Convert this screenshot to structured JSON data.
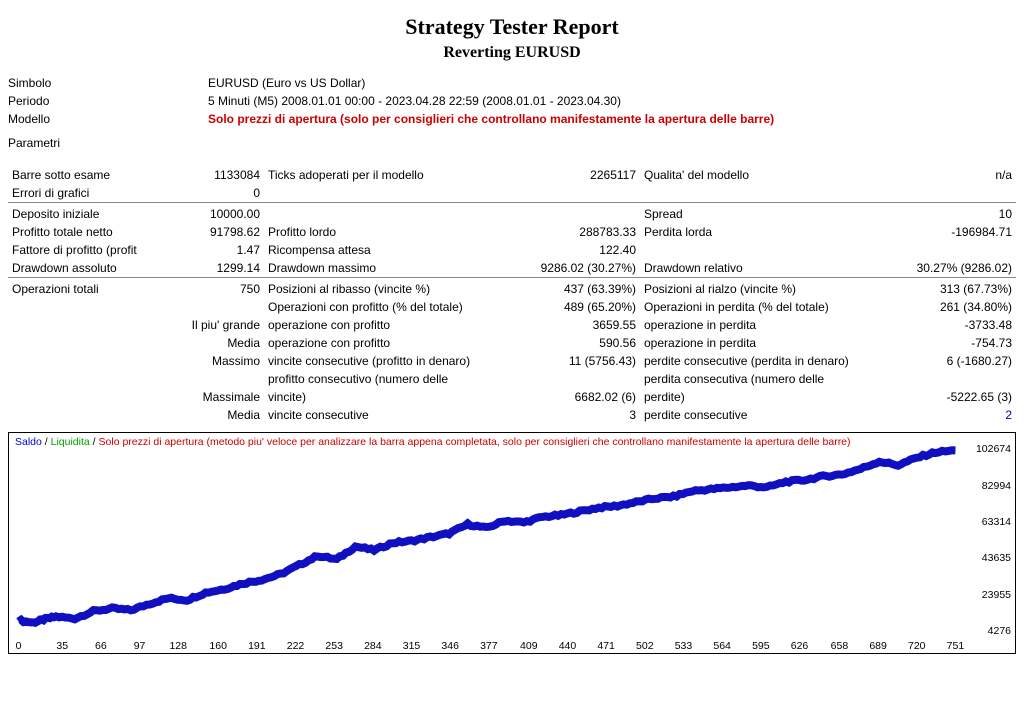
{
  "title": "Strategy Tester Report",
  "subtitle": "Reverting EURUSD",
  "meta": {
    "simbolo_l": "Simbolo",
    "simbolo_v": "EURUSD (Euro vs US Dollar)",
    "periodo_l": "Periodo",
    "periodo_v": "5 Minuti (M5) 2008.01.01 00:00 - 2023.04.28 22:59 (2008.01.01 - 2023.04.30)",
    "modello_l": "Modello",
    "modello_v": "Solo prezzi di apertura (solo per consiglieri che controllano manifestamente la apertura delle barre)",
    "parametri_l": "Parametri"
  },
  "row1": {
    "l1": "Barre sotto esame",
    "v1": "1133084",
    "l2": "Ticks adoperati per il modello",
    "v2": "2265117",
    "l3": "Qualita' del modello",
    "v3": "n/a"
  },
  "row2": {
    "l1": "Errori di grafici",
    "v1": "0",
    "l2": "",
    "v2": "",
    "l3": "",
    "v3": ""
  },
  "row3": {
    "l1": "Deposito iniziale",
    "v1": "10000.00",
    "l2": "",
    "v2": "",
    "l3": "Spread",
    "v3": "10"
  },
  "row4": {
    "l1": "Profitto totale netto",
    "v1": "91798.62",
    "l2": "Profitto lordo",
    "v2": "288783.33",
    "l3": "Perdita lorda",
    "v3": "-196984.71"
  },
  "row5": {
    "l1": "Fattore di profitto (profit",
    "v1": "1.47",
    "l2": "Ricompensa attesa",
    "v2": "122.40",
    "l3": "",
    "v3": ""
  },
  "row6": {
    "l1": "Drawdown assoluto",
    "v1": "1299.14",
    "l2": "Drawdown massimo",
    "v2": "9286.02 (30.27%)",
    "l3": "Drawdown relativo",
    "v3": "30.27% (9286.02)"
  },
  "row7": {
    "l1": "Operazioni totali",
    "v1": "750",
    "l2": "Posizioni al ribasso (vincite %)",
    "v2": "437 (63.39%)",
    "l3": "Posizioni al rialzo (vincite %)",
    "v3": "313 (67.73%)"
  },
  "row8": {
    "l1": "",
    "v1": "",
    "l2": "Operazioni con profitto (% del totale)",
    "v2": "489 (65.20%)",
    "l3": "Operazioni in perdita (% del totale)",
    "v3": "261 (34.80%)"
  },
  "row9": {
    "l1": "",
    "v1": "Il piu' grande",
    "l2": "operazione con profitto",
    "v2": "3659.55",
    "l3": "operazione in perdita",
    "v3": "-3733.48"
  },
  "row10": {
    "l1": "",
    "v1": "Media",
    "l2": "operazione con profitto",
    "v2": "590.56",
    "l3": "operazione in perdita",
    "v3": "-754.73"
  },
  "row11": {
    "l1": "",
    "v1": "Massimo",
    "l2": "vincite consecutive (profitto in denaro)",
    "v2": "11 (5756.43)",
    "l3": "perdite consecutive (perdita in denaro)",
    "v3": "6 (-1680.27)"
  },
  "row12": {
    "l1": "",
    "v1": "",
    "l2": "profitto consecutivo (numero delle",
    "v2": "",
    "l3": "perdita consecutiva (numero delle",
    "v3": ""
  },
  "row13": {
    "l1": "",
    "v1": "Massimale",
    "l2": "vincite)",
    "v2": "6682.02 (6)",
    "l3": "perdite)",
    "v3": "-5222.65 (3)"
  },
  "row14": {
    "l1": "",
    "v1": "Media",
    "l2": "vincite consecutive",
    "v2": "3",
    "l3": "perdite consecutive",
    "v3": "2"
  },
  "chart": {
    "legend": {
      "saldo": "Saldo",
      "liq": "Liquidita",
      "mode": "Solo prezzi di apertura (metodo piu' veloce per analizzare la barra appena completata, solo per consiglieri che controllano manifestamente la apertura delle barre)"
    },
    "line_color": "#1010c0",
    "y_ticks": [
      4276,
      23955,
      43635,
      63314,
      82994,
      102674
    ],
    "x_ticks": [
      0,
      35,
      66,
      97,
      128,
      160,
      191,
      222,
      253,
      284,
      315,
      346,
      377,
      409,
      440,
      471,
      502,
      533,
      564,
      595,
      626,
      658,
      689,
      720,
      751
    ],
    "x_min": 0,
    "x_max": 751,
    "y_min": 4276,
    "y_max": 102674,
    "points": [
      [
        0,
        10000
      ],
      [
        12,
        8800
      ],
      [
        20,
        10500
      ],
      [
        30,
        12000
      ],
      [
        45,
        11000
      ],
      [
        60,
        15000
      ],
      [
        75,
        16500
      ],
      [
        90,
        15500
      ],
      [
        105,
        19000
      ],
      [
        120,
        22000
      ],
      [
        135,
        21000
      ],
      [
        150,
        25000
      ],
      [
        165,
        27000
      ],
      [
        180,
        30000
      ],
      [
        195,
        32000
      ],
      [
        210,
        35000
      ],
      [
        225,
        40000
      ],
      [
        240,
        45000
      ],
      [
        255,
        43000
      ],
      [
        270,
        50000
      ],
      [
        285,
        48000
      ],
      [
        300,
        52000
      ],
      [
        315,
        53000
      ],
      [
        330,
        55000
      ],
      [
        345,
        57000
      ],
      [
        360,
        62000
      ],
      [
        375,
        60000
      ],
      [
        390,
        64000
      ],
      [
        405,
        63000
      ],
      [
        420,
        66000
      ],
      [
        435,
        67000
      ],
      [
        450,
        69000
      ],
      [
        465,
        71000
      ],
      [
        480,
        72000
      ],
      [
        495,
        74000
      ],
      [
        510,
        76000
      ],
      [
        525,
        77000
      ],
      [
        540,
        80000
      ],
      [
        555,
        81000
      ],
      [
        570,
        82000
      ],
      [
        585,
        83000
      ],
      [
        600,
        82000
      ],
      [
        615,
        85000
      ],
      [
        630,
        86000
      ],
      [
        645,
        88000
      ],
      [
        660,
        89000
      ],
      [
        675,
        92000
      ],
      [
        690,
        96000
      ],
      [
        705,
        94000
      ],
      [
        720,
        98000
      ],
      [
        735,
        101000
      ],
      [
        751,
        102000
      ]
    ]
  }
}
